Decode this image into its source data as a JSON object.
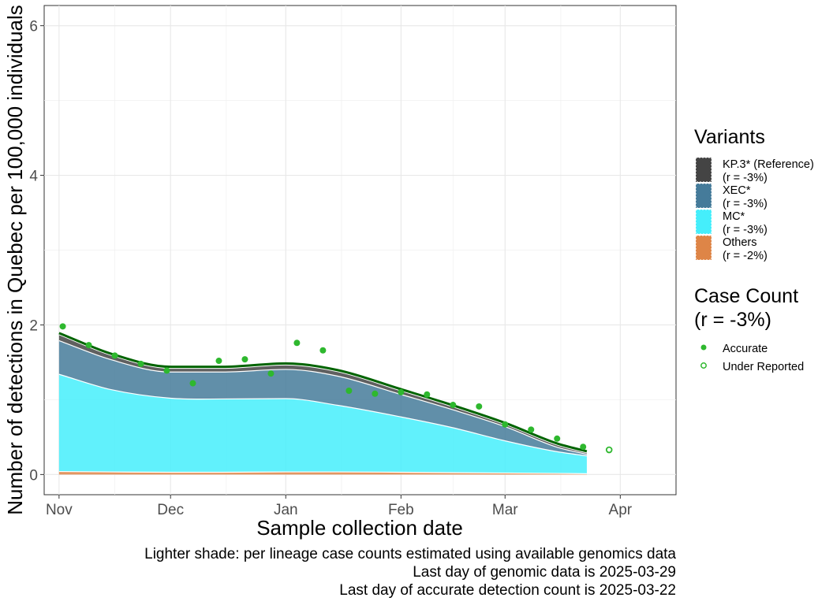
{
  "chart_data": {
    "type": "area",
    "title": "",
    "xlabel": "Sample collection date",
    "ylabel": "Number of detections in Quebec per 100,000 individuals",
    "x_tick_labels": [
      "Nov",
      "Dec",
      "Jan",
      "Feb",
      "Mar",
      "Apr"
    ],
    "x_tick_dates": [
      "2024-11-01",
      "2024-12-01",
      "2025-01-01",
      "2025-02-01",
      "2025-03-01",
      "2025-04-01"
    ],
    "xlim": [
      "2024-10-28",
      "2025-04-16"
    ],
    "y_tick_labels": [
      "0",
      "2",
      "4",
      "6"
    ],
    "y_ticks": [
      0,
      2,
      4,
      6
    ],
    "ylim": [
      -0.27,
      6.27
    ],
    "grid": true,
    "legend_position": "right",
    "stacked_series": [
      {
        "name": "Others",
        "r_label": "(r = -2%)",
        "color": "#de8547",
        "x": [
          "2024-11-01",
          "2024-11-15",
          "2024-12-01",
          "2024-12-15",
          "2025-01-01",
          "2025-01-15",
          "2025-02-01",
          "2025-02-15",
          "2025-03-01",
          "2025-03-15",
          "2025-03-23"
        ],
        "values": [
          0.04,
          0.035,
          0.03,
          0.03,
          0.035,
          0.035,
          0.03,
          0.025,
          0.02,
          0.015,
          0.01
        ]
      },
      {
        "name": "MC*",
        "r_label": "(r = -3%)",
        "color": "#45eefb",
        "x": [
          "2024-11-01",
          "2024-11-15",
          "2024-12-01",
          "2024-12-15",
          "2025-01-01",
          "2025-01-15",
          "2025-02-01",
          "2025-02-15",
          "2025-03-01",
          "2025-03-15",
          "2025-03-23"
        ],
        "values": [
          1.3,
          1.1,
          0.99,
          0.98,
          0.98,
          0.89,
          0.74,
          0.6,
          0.43,
          0.29,
          0.24
        ]
      },
      {
        "name": "XEC*",
        "r_label": "(r = -3%)",
        "color": "#457b9a",
        "x": [
          "2024-11-01",
          "2024-11-15",
          "2024-12-01",
          "2024-12-15",
          "2025-01-01",
          "2025-01-15",
          "2025-02-01",
          "2025-02-15",
          "2025-03-01",
          "2025-03-15",
          "2025-03-23"
        ],
        "values": [
          0.45,
          0.4,
          0.35,
          0.36,
          0.39,
          0.39,
          0.3,
          0.24,
          0.19,
          0.06,
          0.02
        ]
      },
      {
        "name": "KP.3* (Reference)",
        "r_label": "(r = -3%)",
        "color": "#444444",
        "x": [
          "2024-11-01",
          "2024-11-15",
          "2024-12-01",
          "2024-12-15",
          "2025-01-01",
          "2025-01-15",
          "2025-02-01",
          "2025-02-15",
          "2025-03-01",
          "2025-03-15",
          "2025-03-23"
        ],
        "values": [
          0.08,
          0.06,
          0.05,
          0.05,
          0.06,
          0.06,
          0.05,
          0.04,
          0.03,
          0.03,
          0.02
        ]
      }
    ],
    "total_trend_color": "#006400",
    "case_count": {
      "name": "Case Count",
      "r_label": "(r = -3%)",
      "point_color": "#2eb82e",
      "accurate_label": "Accurate",
      "under_reported_label": "Under Reported",
      "accurate_points": [
        {
          "x": "2024-11-02",
          "y": 1.98
        },
        {
          "x": "2024-11-09",
          "y": 1.73
        },
        {
          "x": "2024-11-16",
          "y": 1.59
        },
        {
          "x": "2024-11-23",
          "y": 1.48
        },
        {
          "x": "2024-11-30",
          "y": 1.39
        },
        {
          "x": "2024-12-07",
          "y": 1.22
        },
        {
          "x": "2024-12-14",
          "y": 1.52
        },
        {
          "x": "2024-12-21",
          "y": 1.54
        },
        {
          "x": "2024-12-28",
          "y": 1.35
        },
        {
          "x": "2025-01-04",
          "y": 1.76
        },
        {
          "x": "2025-01-11",
          "y": 1.66
        },
        {
          "x": "2025-01-18",
          "y": 1.12
        },
        {
          "x": "2025-01-25",
          "y": 1.08
        },
        {
          "x": "2025-02-01",
          "y": 1.1
        },
        {
          "x": "2025-02-08",
          "y": 1.07
        },
        {
          "x": "2025-02-15",
          "y": 0.93
        },
        {
          "x": "2025-02-22",
          "y": 0.91
        },
        {
          "x": "2025-03-01",
          "y": 0.67
        },
        {
          "x": "2025-03-08",
          "y": 0.6
        },
        {
          "x": "2025-03-15",
          "y": 0.48
        },
        {
          "x": "2025-03-22",
          "y": 0.37
        }
      ],
      "under_reported_points": [
        {
          "x": "2025-03-29",
          "y": 0.33
        }
      ]
    }
  },
  "legend": {
    "variants_title": "Variants",
    "case_count_title_line1": "Case Count",
    "case_count_title_line2": "(r = -3%)"
  },
  "caption_lines": [
    "Lighter shade: per lineage case counts estimated using available genomics data",
    "Last day of genomic data is 2025-03-29",
    "Last day of accurate detection count is 2025-03-22"
  ]
}
